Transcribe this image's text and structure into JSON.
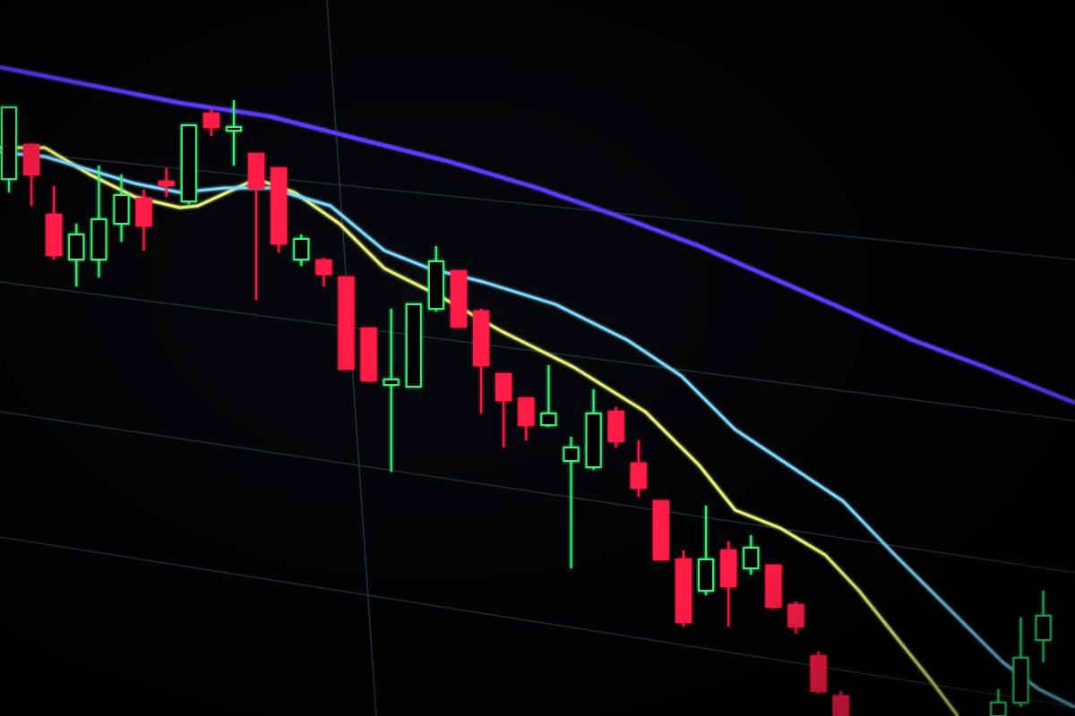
{
  "chart_data": {
    "type": "candlestick",
    "title": "",
    "xlabel": "",
    "ylabel": "",
    "grid": true,
    "colors": {
      "up": "#3df07a",
      "down": "#ff1f47",
      "background": "#000000",
      "grid": "#2a3d4a"
    },
    "candles": [
      {
        "o": 80,
        "h": 88,
        "l": 78.5,
        "c": 88
      },
      {
        "o": 83.8,
        "h": 84,
        "l": 77,
        "c": 80.5
      },
      {
        "o": 76,
        "h": 79.2,
        "l": 71,
        "c": 71.5
      },
      {
        "o": 71,
        "h": 75,
        "l": 68,
        "c": 73.8
      },
      {
        "o": 71,
        "h": 81.5,
        "l": 69,
        "c": 75.5
      },
      {
        "o": 75,
        "h": 80.5,
        "l": 73,
        "c": 78.2
      },
      {
        "o": 77.8,
        "h": 78.8,
        "l": 72,
        "c": 74.8
      },
      {
        "o": 79.7,
        "h": 81.2,
        "l": 78,
        "c": 79.3
      },
      {
        "o": 77.5,
        "h": 86,
        "l": 77.2,
        "c": 86
      },
      {
        "o": 87.3,
        "h": 87.8,
        "l": 84.8,
        "c": 85.8
      },
      {
        "o": 85.4,
        "h": 88.8,
        "l": 81.5,
        "c": 85.8
      },
      {
        "o": 82.8,
        "h": 82.8,
        "l": 66.5,
        "c": 79
      },
      {
        "o": 81.2,
        "h": 81.2,
        "l": 71.8,
        "c": 72.8
      },
      {
        "o": 71,
        "h": 73.8,
        "l": 70.3,
        "c": 73.3
      },
      {
        "o": 70.9,
        "h": 71.2,
        "l": 68,
        "c": 69.4
      },
      {
        "o": 69,
        "h": 69,
        "l": 58.8,
        "c": 58.8
      },
      {
        "o": 63.3,
        "h": 63.3,
        "l": 57.3,
        "c": 57.5
      },
      {
        "o": 57,
        "h": 65.5,
        "l": 47.3,
        "c": 57.6
      },
      {
        "o": 56.8,
        "h": 66,
        "l": 56.8,
        "c": 66
      },
      {
        "o": 65.5,
        "h": 72.5,
        "l": 65.2,
        "c": 70.8
      },
      {
        "o": 69.7,
        "h": 69.7,
        "l": 63.5,
        "c": 63.5
      },
      {
        "o": 65.2,
        "h": 65.5,
        "l": 53.8,
        "c": 59.2
      },
      {
        "o": 58.2,
        "h": 58.2,
        "l": 50,
        "c": 55.3
      },
      {
        "o": 55.5,
        "h": 55.5,
        "l": 50.8,
        "c": 52.5
      },
      {
        "o": 52.5,
        "h": 59.2,
        "l": 52.3,
        "c": 53.8
      },
      {
        "o": 48.5,
        "h": 51.2,
        "l": 36.5,
        "c": 50
      },
      {
        "o": 47.8,
        "h": 56.5,
        "l": 47.5,
        "c": 53.8
      },
      {
        "o": 54,
        "h": 54.5,
        "l": 50,
        "c": 50.7
      },
      {
        "o": 48.2,
        "h": 50.8,
        "l": 44.5,
        "c": 45.5
      },
      {
        "o": 44,
        "h": 44,
        "l": 37.5,
        "c": 37.5
      },
      {
        "o": 37.5,
        "h": 38.5,
        "l": 30,
        "c": 30.5
      },
      {
        "o": 34,
        "h": 43.5,
        "l": 33.5,
        "c": 37.5
      },
      {
        "o": 38.5,
        "h": 39.5,
        "l": 30,
        "c": 34.5
      },
      {
        "o": 36.5,
        "h": 40.2,
        "l": 35.8,
        "c": 38.8
      },
      {
        "o": 36.8,
        "h": 36.8,
        "l": 32,
        "c": 32.2
      },
      {
        "o": 32.4,
        "h": 32.8,
        "l": 29.2,
        "c": 30
      },
      {
        "o": 26.7,
        "h": 27.2,
        "l": 22.5,
        "c": 22.8
      },
      {
        "o": 22.2,
        "h": 22.8,
        "l": 20,
        "c": 20
      },
      null,
      null,
      null,
      null,
      null,
      null,
      {
        "o": 20,
        "h": 23,
        "l": 20,
        "c": 21.5
      },
      {
        "o": 21.5,
        "h": 31,
        "l": 21,
        "c": 26.5
      },
      {
        "o": 28.5,
        "h": 34,
        "l": 26,
        "c": 31.2
      }
    ],
    "moving_averages": [
      {
        "color": "#e8f07a",
        "points": [
          [
            -0.4,
            83.5
          ],
          [
            1.6,
            83.5
          ],
          [
            3.6,
            80.5
          ],
          [
            5.6,
            78
          ],
          [
            7.6,
            76.8
          ],
          [
            8.4,
            77
          ],
          [
            11,
            80
          ],
          [
            12.7,
            78.5
          ],
          [
            14.7,
            75
          ],
          [
            16.7,
            70
          ],
          [
            19.1,
            67
          ],
          [
            21.9,
            63
          ],
          [
            25.1,
            59
          ],
          [
            28.3,
            54
          ],
          [
            30.7,
            48
          ],
          [
            32.3,
            43
          ],
          [
            34.3,
            41
          ],
          [
            36.3,
            38
          ],
          [
            37.8,
            34
          ],
          [
            39.4,
            29
          ],
          [
            41,
            24
          ],
          [
            42.2,
            20
          ]
        ]
      },
      {
        "color": "#7fd8ff",
        "points": [
          [
            -0.4,
            83
          ],
          [
            1.6,
            82.5
          ],
          [
            3.6,
            81
          ],
          [
            5.6,
            79.5
          ],
          [
            7.6,
            78.5
          ],
          [
            9.6,
            79
          ],
          [
            11.6,
            79
          ],
          [
            14.3,
            77
          ],
          [
            16.7,
            72
          ],
          [
            18.7,
            70
          ],
          [
            21.1,
            68.5
          ],
          [
            24.3,
            66
          ],
          [
            27.5,
            62
          ],
          [
            29.9,
            58
          ],
          [
            32.3,
            52
          ],
          [
            34.7,
            48
          ],
          [
            37.1,
            44
          ],
          [
            39.4,
            38
          ],
          [
            41.8,
            32
          ],
          [
            44.2,
            26
          ],
          [
            45.8,
            23
          ],
          [
            47.4,
            21
          ]
        ]
      },
      {
        "color": "#5a3cff",
        "points": [
          [
            -0.4,
            92.5
          ],
          [
            3.6,
            90.5
          ],
          [
            7.6,
            88.5
          ],
          [
            11.6,
            87
          ],
          [
            15.5,
            84.5
          ],
          [
            19.5,
            82
          ],
          [
            23.5,
            79
          ],
          [
            27.5,
            75.5
          ],
          [
            30.7,
            72.5
          ],
          [
            33.9,
            69
          ],
          [
            37.1,
            65.5
          ],
          [
            40.2,
            62
          ],
          [
            43.4,
            59
          ],
          [
            47.4,
            55
          ]
        ]
      }
    ]
  }
}
